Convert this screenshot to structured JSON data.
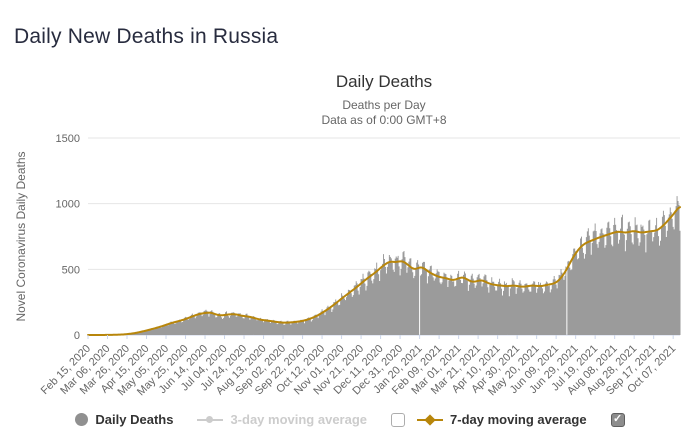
{
  "header": {
    "title": "Daily New Deaths in Russia"
  },
  "chart": {
    "title": "Daily Deaths",
    "subtitle_line1": "Deaths per Day",
    "subtitle_line2": "Data as of 0:00 GMT+8"
  },
  "legend": {
    "items": [
      {
        "label": "Daily Deaths",
        "marker": "circle",
        "color": "#909090",
        "active": true
      },
      {
        "label": "3-day moving average",
        "marker": "line-circle",
        "color": "#cccccc",
        "active": false,
        "checkbox": "unchecked"
      },
      {
        "label": "7-day moving average",
        "marker": "line-diamond",
        "color": "#b8860b",
        "active": true,
        "checkbox": "checked"
      }
    ],
    "checkmark_glyph": "✓"
  },
  "chart_data": {
    "type": "bar+line",
    "title": "Daily Deaths",
    "subtitle": [
      "Deaths per Day",
      "Data as of 0:00 GMT+8"
    ],
    "xlabel": "",
    "ylabel": "Novel Coronavirus Daily Deaths",
    "ylim": [
      0,
      1500
    ],
    "yticks": [
      0,
      500,
      1000,
      1500
    ],
    "grid": true,
    "legend_position": "bottom",
    "x_start_date": "Feb 15, 2020",
    "x_tick_interval_days": 20,
    "x_total_days": 607,
    "x_tick_labels": [
      "Feb 15, 2020",
      "Mar 06, 2020",
      "Mar 26, 2020",
      "Apr 15, 2020",
      "May 05, 2020",
      "May 25, 2020",
      "Jun 14, 2020",
      "Jul 04, 2020",
      "Jul 24, 2020",
      "Aug 13, 2020",
      "Sep 02, 2020",
      "Sep 22, 2020",
      "Oct 12, 2020",
      "Nov 01, 2020",
      "Nov 21, 2020",
      "Dec 11, 2020",
      "Dec 31, 2020",
      "Jan 20, 2021",
      "Feb 09, 2021",
      "Mar 01, 2021",
      "Mar 21, 2021",
      "Apr 10, 2021",
      "Apr 30, 2021",
      "May 20, 2021",
      "Jun 09, 2021",
      "Jun 29, 2021",
      "Jul 19, 2021",
      "Aug 08, 2021",
      "Aug 28, 2021",
      "Sep 17, 2021",
      "Oct 07, 2021"
    ],
    "series": [
      {
        "name": "Daily Deaths",
        "type": "column",
        "color": "#9b9b9b",
        "visible": true,
        "note": "daily values scatter around the 7-day moving average; modeled via weekly_pattern + noise below"
      },
      {
        "name": "3-day moving average",
        "type": "line",
        "color": "#cccccc",
        "visible": false
      },
      {
        "name": "7-day moving average",
        "type": "line",
        "color": "#b8860b",
        "visible": true,
        "keypoints_day_value": [
          [
            0,
            0
          ],
          [
            14,
            0
          ],
          [
            22,
            1
          ],
          [
            30,
            2
          ],
          [
            36,
            4
          ],
          [
            42,
            8
          ],
          [
            48,
            14
          ],
          [
            54,
            24
          ],
          [
            60,
            34
          ],
          [
            66,
            46
          ],
          [
            72,
            58
          ],
          [
            78,
            72
          ],
          [
            84,
            88
          ],
          [
            90,
            100
          ],
          [
            96,
            112
          ],
          [
            102,
            126
          ],
          [
            108,
            145
          ],
          [
            114,
            160
          ],
          [
            120,
            168
          ],
          [
            125,
            172
          ],
          [
            129,
            163
          ],
          [
            133,
            152
          ],
          [
            137,
            149
          ],
          [
            141,
            153
          ],
          [
            146,
            158
          ],
          [
            151,
            159
          ],
          [
            156,
            149
          ],
          [
            161,
            143
          ],
          [
            166,
            139
          ],
          [
            171,
            128
          ],
          [
            176,
            118
          ],
          [
            181,
            112
          ],
          [
            186,
            108
          ],
          [
            191,
            102
          ],
          [
            196,
            97
          ],
          [
            201,
            93
          ],
          [
            206,
            95
          ],
          [
            211,
            98
          ],
          [
            216,
            102
          ],
          [
            221,
            109
          ],
          [
            226,
            119
          ],
          [
            231,
            133
          ],
          [
            236,
            151
          ],
          [
            241,
            173
          ],
          [
            246,
            197
          ],
          [
            251,
            224
          ],
          [
            256,
            253
          ],
          [
            261,
            283
          ],
          [
            266,
            311
          ],
          [
            271,
            339
          ],
          [
            276,
            367
          ],
          [
            281,
            399
          ],
          [
            286,
            429
          ],
          [
            291,
            456
          ],
          [
            296,
            484
          ],
          [
            300,
            512
          ],
          [
            305,
            541
          ],
          [
            310,
            562
          ],
          [
            314,
            554
          ],
          [
            318,
            558
          ],
          [
            322,
            565
          ],
          [
            326,
            548
          ],
          [
            330,
            522
          ],
          [
            334,
            498
          ],
          [
            338,
            508
          ],
          [
            342,
            520
          ],
          [
            346,
            500
          ],
          [
            350,
            477
          ],
          [
            355,
            458
          ],
          [
            360,
            442
          ],
          [
            365,
            436
          ],
          [
            370,
            426
          ],
          [
            375,
            416
          ],
          [
            380,
            432
          ],
          [
            384,
            441
          ],
          [
            388,
            428
          ],
          [
            392,
            408
          ],
          [
            396,
            404
          ],
          [
            400,
            413
          ],
          [
            404,
            419
          ],
          [
            408,
            403
          ],
          [
            412,
            390
          ],
          [
            416,
            383
          ],
          [
            420,
            379
          ],
          [
            425,
            375
          ],
          [
            430,
            371
          ],
          [
            435,
            377
          ],
          [
            440,
            374
          ],
          [
            445,
            366
          ],
          [
            450,
            371
          ],
          [
            455,
            377
          ],
          [
            460,
            374
          ],
          [
            464,
            371
          ],
          [
            468,
            377
          ],
          [
            472,
            383
          ],
          [
            476,
            389
          ],
          [
            480,
            398
          ],
          [
            484,
            425
          ],
          [
            488,
            465
          ],
          [
            492,
            515
          ],
          [
            496,
            575
          ],
          [
            500,
            622
          ],
          [
            504,
            662
          ],
          [
            508,
            690
          ],
          [
            512,
            706
          ],
          [
            516,
            718
          ],
          [
            520,
            730
          ],
          [
            524,
            742
          ],
          [
            528,
            752
          ],
          [
            532,
            762
          ],
          [
            536,
            772
          ],
          [
            540,
            782
          ],
          [
            544,
            788
          ],
          [
            548,
            783
          ],
          [
            552,
            778
          ],
          [
            556,
            788
          ],
          [
            560,
            793
          ],
          [
            564,
            785
          ],
          [
            568,
            779
          ],
          [
            572,
            784
          ],
          [
            576,
            789
          ],
          [
            580,
            792
          ],
          [
            583,
            796
          ],
          [
            586,
            808
          ],
          [
            589,
            828
          ],
          [
            592,
            850
          ],
          [
            595,
            874
          ],
          [
            598,
            900
          ],
          [
            601,
            926
          ],
          [
            604,
            954
          ],
          [
            607,
            992
          ]
        ]
      }
    ],
    "data_gap_days": [
      340,
      491
    ],
    "daily_bar_model": {
      "weekly_pattern": [
        0.04,
        0.09,
        0.11,
        0.03,
        -0.04,
        -0.15,
        -0.08
      ],
      "noise_amplitude": 0.06,
      "seed": 7
    },
    "colors": {
      "grid_line": "#e6e6e6",
      "axis_line": "#ccd6eb",
      "axis_text": "#666666",
      "bars": "#9b9b9b",
      "avg7_line": "#b8860b"
    }
  }
}
